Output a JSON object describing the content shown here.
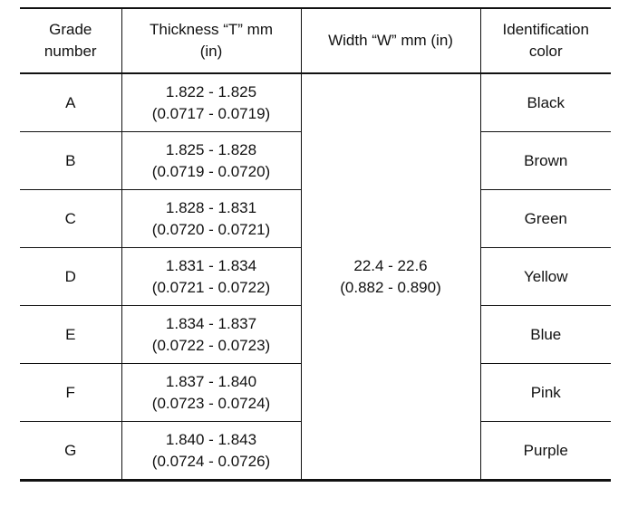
{
  "table": {
    "headers": {
      "grade": [
        "Grade",
        "number"
      ],
      "thickness": [
        "Thickness “T” mm",
        "(in)"
      ],
      "width": [
        "Width “W” mm (in)"
      ],
      "color": [
        "Identification",
        "color"
      ]
    },
    "rows": [
      {
        "grade": "A",
        "thickness_mm": "1.822 - 1.825",
        "thickness_in": "(0.0717 - 0.0719)",
        "color": "Black"
      },
      {
        "grade": "B",
        "thickness_mm": "1.825 - 1.828",
        "thickness_in": "(0.0719 - 0.0720)",
        "color": "Brown"
      },
      {
        "grade": "C",
        "thickness_mm": "1.828 - 1.831",
        "thickness_in": "(0.0720 - 0.0721)",
        "color": "Green"
      },
      {
        "grade": "D",
        "thickness_mm": "1.831 - 1.834",
        "thickness_in": "(0.0721 - 0.0722)",
        "color": "Yellow"
      },
      {
        "grade": "E",
        "thickness_mm": "1.834 - 1.837",
        "thickness_in": "(0.0722 - 0.0723)",
        "color": "Blue"
      },
      {
        "grade": "F",
        "thickness_mm": "1.837 - 1.840",
        "thickness_in": "(0.0723 - 0.0724)",
        "color": "Pink"
      },
      {
        "grade": "G",
        "thickness_mm": "1.840 - 1.843",
        "thickness_in": "(0.0724 - 0.0726)",
        "color": "Purple"
      }
    ],
    "width_value": {
      "mm": "22.4 - 22.6",
      "in": "(0.882 - 0.890)"
    }
  }
}
